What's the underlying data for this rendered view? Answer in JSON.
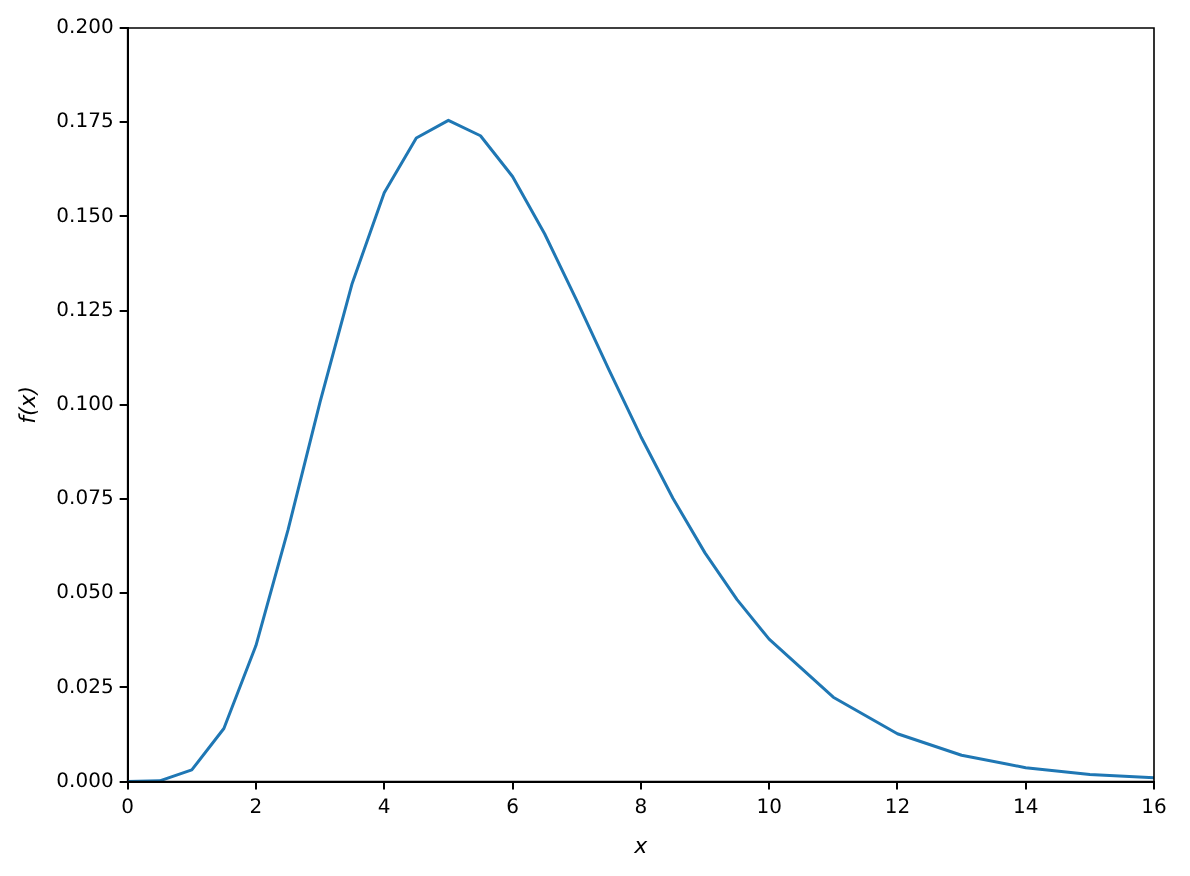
{
  "chart_data": {
    "type": "line",
    "xlabel": "x",
    "ylabel": "f(x)",
    "xlim": [
      0,
      16
    ],
    "xticks": [
      0,
      2,
      4,
      6,
      8,
      10,
      12,
      14,
      16
    ],
    "ylim": [
      0,
      0.2
    ],
    "yticks": [
      {
        "value": 0,
        "label": "0.000"
      },
      {
        "value": 0.025,
        "label": "0.025"
      },
      {
        "value": 0.05,
        "label": "0.050"
      },
      {
        "value": 0.075,
        "label": "0.075"
      },
      {
        "value": 0.1,
        "label": "0.100"
      },
      {
        "value": 0.125,
        "label": "0.125"
      },
      {
        "value": 0.15,
        "label": "0.150"
      },
      {
        "value": 0.175,
        "label": "0.175"
      },
      {
        "value": 0.2,
        "label": "0.200"
      }
    ],
    "grid": false,
    "legend": false,
    "marker": "none",
    "line_style": "solid",
    "series": [
      {
        "color": "#1f77b4",
        "x": [
          0,
          0.5,
          1,
          1.5,
          2,
          2.5,
          3,
          3.5,
          4,
          4.5,
          5,
          5.5,
          6,
          6.5,
          7,
          7.5,
          8,
          8.5,
          9,
          9.5,
          10,
          11,
          12,
          13,
          14,
          15,
          16
        ],
        "values": [
          0,
          0.0002,
          0.0031,
          0.0141,
          0.0361,
          0.0668,
          0.1008,
          0.1322,
          0.1563,
          0.1708,
          0.1755,
          0.1714,
          0.1606,
          0.1454,
          0.1277,
          0.1094,
          0.0916,
          0.0752,
          0.0607,
          0.0483,
          0.0378,
          0.0224,
          0.0127,
          0.007,
          0.0037,
          0.0019,
          0.001
        ]
      }
    ]
  }
}
